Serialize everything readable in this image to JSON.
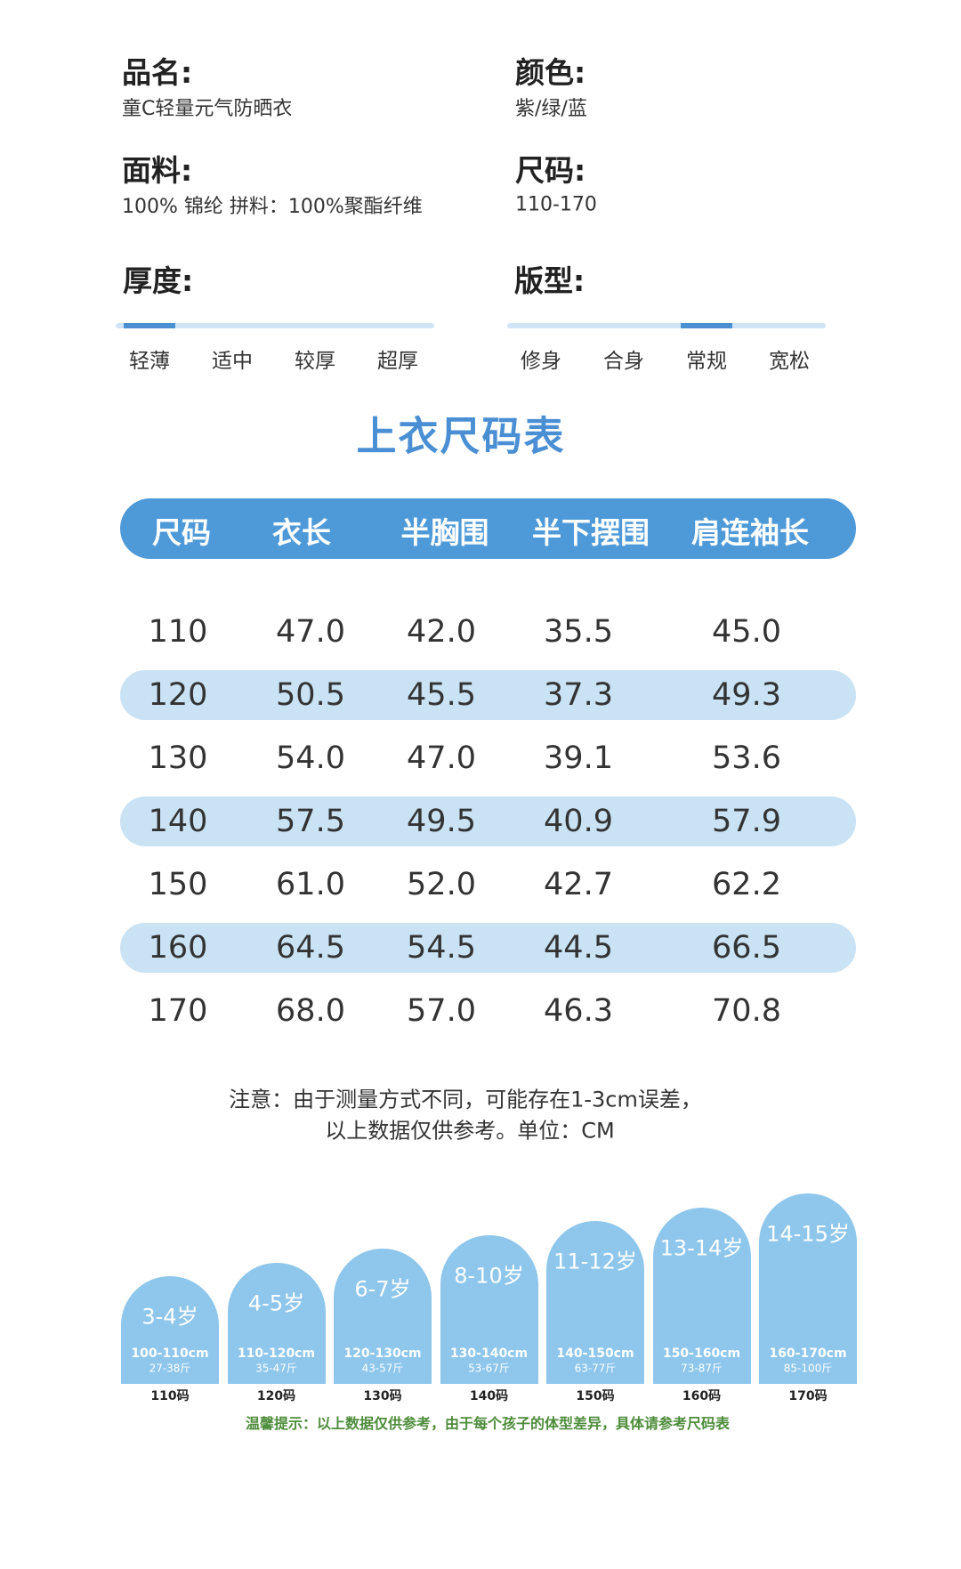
{
  "info": [
    {
      "label": "品名:",
      "value": "童C轻量元气防晒衣"
    },
    {
      "label": "颜色:",
      "value": "紫/绿/蓝"
    },
    {
      "label": "面料:",
      "value": "100% 锦纶 拼料：100%聚酯纤维"
    },
    {
      "label": "尺码:",
      "value": "110-170"
    }
  ],
  "scales": [
    {
      "label": "厚度:",
      "options": [
        "轻薄",
        "适中",
        "较厚",
        "超厚"
      ],
      "selected": 0
    },
    {
      "label": "版型:",
      "options": [
        "修身",
        "合身",
        "常规",
        "宽松"
      ],
      "selected": 2
    }
  ],
  "table": {
    "title": "上衣尺码表",
    "headers": [
      "尺码",
      "衣长",
      "半胸围",
      "半下摆围",
      "肩连袖长"
    ],
    "rows": [
      [
        "110",
        "47.0",
        "42.0",
        "35.5",
        "45.0"
      ],
      [
        "120",
        "50.5",
        "45.5",
        "37.3",
        "49.3"
      ],
      [
        "130",
        "54.0",
        "47.0",
        "39.1",
        "53.6"
      ],
      [
        "140",
        "57.5",
        "49.5",
        "40.9",
        "57.9"
      ],
      [
        "150",
        "61.0",
        "52.0",
        "42.7",
        "62.2"
      ],
      [
        "160",
        "64.5",
        "54.5",
        "44.5",
        "66.5"
      ],
      [
        "170",
        "68.0",
        "57.0",
        "46.3",
        "70.8"
      ]
    ]
  },
  "note": [
    "注意：由于测量方式不同，可能存在1-3cm误差，",
    "以上数据仅供参考。单位：CM"
  ],
  "ages": [
    {
      "age": "3-4岁",
      "height": "100-110cm",
      "weight": "27-38斤",
      "size": "110码"
    },
    {
      "age": "4-5岁",
      "height": "110-120cm",
      "weight": "35-47斤",
      "size": "120码"
    },
    {
      "age": "6-7岁",
      "height": "120-130cm",
      "weight": "43-57斤",
      "size": "130码"
    },
    {
      "age": "8-10岁",
      "height": "130-140cm",
      "weight": "53-67斤",
      "size": "140码"
    },
    {
      "age": "11-12岁",
      "height": "140-150cm",
      "weight": "63-77斤",
      "size": "150码"
    },
    {
      "age": "13-14岁",
      "height": "150-160cm",
      "weight": "73-87斤",
      "size": "160码"
    },
    {
      "age": "14-15岁",
      "height": "160-170cm",
      "weight": "85-100斤",
      "size": "170码"
    }
  ],
  "tip": "温馨提示：以上数据仅供参考，由于每个孩子的体型差异，具体请参考尺码表"
}
